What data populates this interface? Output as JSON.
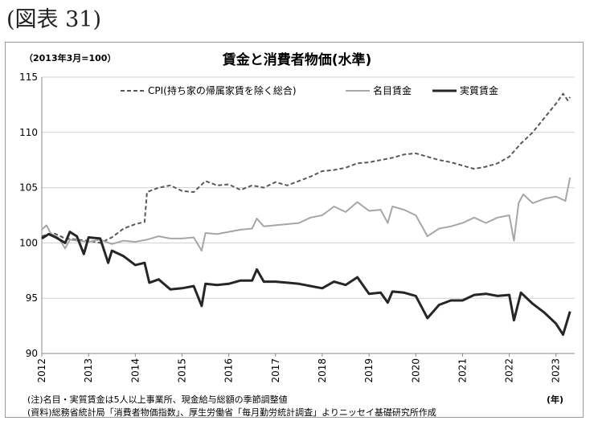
{
  "figure_label": "(図表 31)",
  "base_note": "（2013年3月=100）",
  "x_unit": "(年)",
  "notes": [
    "(注)名目・実質賃金は5人以上事業所、現金給与総額の季節調整値",
    "(資料)総務省統計局「消費者物価指数」、厚生労働省「毎月勤労統計調査」よりニッセイ基礎研究所作成"
  ],
  "colors": {
    "cpi": "#595959",
    "nominal": "#a6a6a6",
    "real": "#262626",
    "axis": "#888888"
  },
  "chart_data": {
    "type": "line",
    "title": "賃金と消費者物価(水準)",
    "xlabel": "",
    "ylabel": "",
    "ylim": [
      90,
      115
    ],
    "yticks": [
      90,
      95,
      100,
      105,
      110,
      115
    ],
    "xlim": [
      2012.0,
      2023.4
    ],
    "xticks": [
      "2012",
      "2013",
      "2014",
      "2015",
      "2016",
      "2017",
      "2018",
      "2019",
      "2020",
      "2021",
      "2022",
      "2023"
    ],
    "grid": "horizontal",
    "legend": "top",
    "series": [
      {
        "name": "CPI(持ち家の帰属家賃を除く総合)",
        "style": "dashed",
        "points": [
          [
            2012.0,
            100.6
          ],
          [
            2012.25,
            100.9
          ],
          [
            2012.5,
            100.4
          ],
          [
            2012.75,
            100.3
          ],
          [
            2013.0,
            100.2
          ],
          [
            2013.25,
            100.0
          ],
          [
            2013.5,
            100.5
          ],
          [
            2013.75,
            101.3
          ],
          [
            2014.0,
            101.7
          ],
          [
            2014.2,
            101.9
          ],
          [
            2014.25,
            104.6
          ],
          [
            2014.5,
            105.0
          ],
          [
            2014.75,
            105.2
          ],
          [
            2015.0,
            104.7
          ],
          [
            2015.25,
            104.6
          ],
          [
            2015.5,
            105.6
          ],
          [
            2015.75,
            105.2
          ],
          [
            2016.0,
            105.3
          ],
          [
            2016.25,
            104.8
          ],
          [
            2016.5,
            105.2
          ],
          [
            2016.75,
            105.0
          ],
          [
            2017.0,
            105.5
          ],
          [
            2017.25,
            105.2
          ],
          [
            2017.5,
            105.6
          ],
          [
            2017.75,
            106.0
          ],
          [
            2018.0,
            106.5
          ],
          [
            2018.25,
            106.6
          ],
          [
            2018.5,
            106.8
          ],
          [
            2018.75,
            107.2
          ],
          [
            2019.0,
            107.3
          ],
          [
            2019.25,
            107.5
          ],
          [
            2019.5,
            107.7
          ],
          [
            2019.75,
            108.0
          ],
          [
            2020.0,
            108.1
          ],
          [
            2020.25,
            107.8
          ],
          [
            2020.5,
            107.5
          ],
          [
            2020.75,
            107.3
          ],
          [
            2021.0,
            107.0
          ],
          [
            2021.25,
            106.7
          ],
          [
            2021.5,
            106.9
          ],
          [
            2021.75,
            107.2
          ],
          [
            2022.0,
            107.8
          ],
          [
            2022.25,
            109.0
          ],
          [
            2022.5,
            110.0
          ],
          [
            2022.75,
            111.3
          ],
          [
            2023.0,
            112.6
          ],
          [
            2023.15,
            113.5
          ],
          [
            2023.25,
            112.9
          ],
          [
            2023.3,
            113.2
          ]
        ]
      },
      {
        "name": "名目賃金",
        "style": "solid-light",
        "points": [
          [
            2012.0,
            101.2
          ],
          [
            2012.1,
            101.6
          ],
          [
            2012.2,
            100.8
          ],
          [
            2012.35,
            100.5
          ],
          [
            2012.5,
            99.5
          ],
          [
            2012.6,
            100.3
          ],
          [
            2012.75,
            100.2
          ],
          [
            2013.0,
            100.1
          ],
          [
            2013.25,
            100.3
          ],
          [
            2013.5,
            99.9
          ],
          [
            2013.75,
            100.2
          ],
          [
            2014.0,
            100.1
          ],
          [
            2014.25,
            100.3
          ],
          [
            2014.5,
            100.6
          ],
          [
            2014.75,
            100.4
          ],
          [
            2015.0,
            100.4
          ],
          [
            2015.25,
            100.5
          ],
          [
            2015.42,
            99.3
          ],
          [
            2015.5,
            100.9
          ],
          [
            2015.75,
            100.8
          ],
          [
            2016.0,
            101.0
          ],
          [
            2016.25,
            101.2
          ],
          [
            2016.5,
            101.3
          ],
          [
            2016.6,
            102.2
          ],
          [
            2016.75,
            101.5
          ],
          [
            2017.0,
            101.6
          ],
          [
            2017.25,
            101.7
          ],
          [
            2017.5,
            101.8
          ],
          [
            2017.75,
            102.3
          ],
          [
            2018.0,
            102.5
          ],
          [
            2018.25,
            103.3
          ],
          [
            2018.5,
            102.8
          ],
          [
            2018.75,
            103.7
          ],
          [
            2019.0,
            102.9
          ],
          [
            2019.25,
            103.0
          ],
          [
            2019.4,
            101.8
          ],
          [
            2019.5,
            103.3
          ],
          [
            2019.75,
            103.0
          ],
          [
            2020.0,
            102.5
          ],
          [
            2020.25,
            100.6
          ],
          [
            2020.5,
            101.3
          ],
          [
            2020.75,
            101.5
          ],
          [
            2021.0,
            101.8
          ],
          [
            2021.25,
            102.3
          ],
          [
            2021.5,
            101.8
          ],
          [
            2021.75,
            102.3
          ],
          [
            2022.0,
            102.5
          ],
          [
            2022.1,
            100.2
          ],
          [
            2022.2,
            103.6
          ],
          [
            2022.3,
            104.4
          ],
          [
            2022.5,
            103.6
          ],
          [
            2022.75,
            104.0
          ],
          [
            2023.0,
            104.2
          ],
          [
            2023.2,
            103.8
          ],
          [
            2023.3,
            105.9
          ]
        ]
      },
      {
        "name": "実質賃金",
        "style": "solid-bold",
        "points": [
          [
            2012.0,
            100.4
          ],
          [
            2012.15,
            100.8
          ],
          [
            2012.3,
            100.5
          ],
          [
            2012.5,
            100.0
          ],
          [
            2012.6,
            101.0
          ],
          [
            2012.75,
            100.6
          ],
          [
            2012.9,
            99.0
          ],
          [
            2013.0,
            100.5
          ],
          [
            2013.25,
            100.4
          ],
          [
            2013.42,
            98.2
          ],
          [
            2013.5,
            99.3
          ],
          [
            2013.75,
            98.8
          ],
          [
            2014.0,
            98.0
          ],
          [
            2014.2,
            98.2
          ],
          [
            2014.3,
            96.4
          ],
          [
            2014.5,
            96.7
          ],
          [
            2014.75,
            95.8
          ],
          [
            2015.0,
            95.9
          ],
          [
            2015.25,
            96.1
          ],
          [
            2015.42,
            94.3
          ],
          [
            2015.5,
            96.3
          ],
          [
            2015.75,
            96.2
          ],
          [
            2016.0,
            96.3
          ],
          [
            2016.25,
            96.6
          ],
          [
            2016.5,
            96.6
          ],
          [
            2016.6,
            97.6
          ],
          [
            2016.75,
            96.5
          ],
          [
            2017.0,
            96.5
          ],
          [
            2017.25,
            96.4
          ],
          [
            2017.5,
            96.3
          ],
          [
            2017.75,
            96.1
          ],
          [
            2018.0,
            95.9
          ],
          [
            2018.25,
            96.5
          ],
          [
            2018.5,
            96.2
          ],
          [
            2018.75,
            96.9
          ],
          [
            2019.0,
            95.4
          ],
          [
            2019.25,
            95.5
          ],
          [
            2019.4,
            94.6
          ],
          [
            2019.5,
            95.6
          ],
          [
            2019.75,
            95.5
          ],
          [
            2020.0,
            95.2
          ],
          [
            2020.25,
            93.2
          ],
          [
            2020.5,
            94.4
          ],
          [
            2020.75,
            94.8
          ],
          [
            2021.0,
            94.8
          ],
          [
            2021.25,
            95.3
          ],
          [
            2021.5,
            95.4
          ],
          [
            2021.75,
            95.2
          ],
          [
            2022.0,
            95.3
          ],
          [
            2022.1,
            93.0
          ],
          [
            2022.25,
            95.5
          ],
          [
            2022.5,
            94.5
          ],
          [
            2022.75,
            93.7
          ],
          [
            2023.0,
            92.7
          ],
          [
            2023.15,
            91.7
          ],
          [
            2023.3,
            93.8
          ]
        ]
      }
    ]
  }
}
